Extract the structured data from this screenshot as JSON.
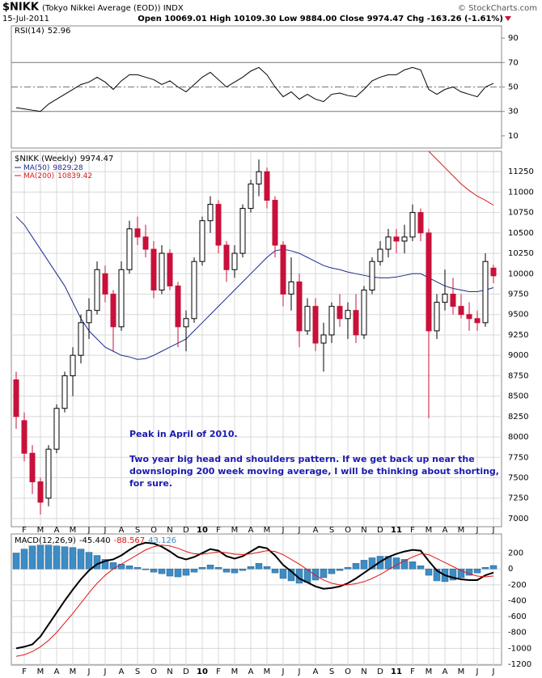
{
  "header": {
    "symbol": "$NIKK",
    "description": "(Tokyo Nikkei Average (EOD)) INDX",
    "date": "15-Jul-2011",
    "quote": "Open 10069.01 High 10109.30 Low 9884.00 Close 9974.47 Chg -163.26 (-1.61%)",
    "source": "© StockCharts.com"
  },
  "chart_data": [
    {
      "type": "line",
      "ylim": [
        0,
        100
      ],
      "yticks": [
        10,
        30,
        50,
        70,
        90
      ],
      "reference_lines": [
        {
          "value": 30,
          "style": "solid"
        },
        {
          "value": 50,
          "style": "dashdot"
        },
        {
          "value": 70,
          "style": "solid"
        }
      ],
      "series": [
        {
          "name": "RSI(14)",
          "color": "#000000",
          "values": [
            33,
            32,
            31,
            30,
            36,
            40,
            44,
            48,
            52,
            54,
            58,
            54,
            48,
            55,
            60,
            60,
            58,
            56,
            52,
            55,
            50,
            46,
            52,
            58,
            62,
            56,
            50,
            54,
            58,
            63,
            66,
            60,
            50,
            42,
            46,
            40,
            44,
            40,
            38,
            44,
            45,
            43,
            42,
            48,
            55,
            58,
            60,
            60,
            64,
            66,
            64,
            48,
            44,
            48,
            50,
            46,
            44,
            42,
            50,
            52.96
          ]
        }
      ]
    },
    {
      "type": "candlestick",
      "ylim": [
        6900,
        11500
      ],
      "yticks": [
        7000,
        7250,
        7500,
        7750,
        8000,
        8250,
        8500,
        8750,
        9000,
        9250,
        9500,
        9750,
        10000,
        10250,
        10500,
        10750,
        11000,
        11250
      ],
      "grid": true,
      "categories": [
        null,
        "F",
        null,
        "M",
        null,
        "A",
        null,
        "M",
        null,
        "J",
        null,
        "J",
        null,
        "A",
        null,
        "S",
        null,
        "O",
        null,
        "N",
        null,
        "D",
        null,
        "10",
        null,
        "F",
        null,
        "M",
        null,
        "A",
        null,
        "M",
        null,
        "J",
        null,
        "J",
        null,
        "A",
        null,
        "S",
        null,
        "O",
        null,
        "N",
        null,
        "D",
        null,
        "11",
        null,
        "F",
        null,
        "M",
        null,
        "A",
        null,
        "M",
        null,
        "J",
        null,
        "J"
      ],
      "annotations": [
        "Peak in April of 2010.",
        "Two year big head and shoulders pattern. If we get back up near the",
        "downsloping 200 week moving average, I will be thinking about shorting,",
        "for sure."
      ],
      "annotation_color": "#1a1ab0",
      "series": [
        {
          "name": "$NIKK (Weekly)",
          "up_color": "#000000",
          "down_color": "#c8103a",
          "open": [
            8700,
            8200,
            7800,
            7450,
            7250,
            7850,
            8350,
            8750,
            9000,
            9400,
            9550,
            10000,
            9750,
            9350,
            10050,
            10550,
            10450,
            10300,
            9800,
            10250,
            9850,
            9350,
            9450,
            10150,
            10650,
            10850,
            10350,
            10050,
            10250,
            10800,
            11100,
            11250,
            10900,
            10350,
            9750,
            9900,
            9300,
            9600,
            9150,
            9250,
            9600,
            9450,
            9550,
            9250,
            9800,
            10150,
            10300,
            10450,
            10400,
            10450,
            10750,
            10500,
            9300,
            9650,
            9750,
            9600,
            9500,
            9450,
            9400,
            10069.01
          ],
          "high": [
            8800,
            8300,
            7900,
            7500,
            7900,
            8400,
            8800,
            9100,
            9500,
            9700,
            10150,
            10100,
            9800,
            10150,
            10650,
            10700,
            10600,
            10400,
            10350,
            10300,
            9900,
            9550,
            10200,
            10700,
            10950,
            10900,
            10400,
            10350,
            10850,
            11150,
            11400,
            11300,
            10950,
            10400,
            10200,
            10000,
            9700,
            9700,
            9400,
            9650,
            9750,
            9650,
            9750,
            9850,
            10200,
            10400,
            10550,
            10550,
            10600,
            10850,
            10800,
            10550,
            9750,
            10050,
            9950,
            9750,
            9650,
            9550,
            10250,
            10109.3
          ],
          "low": [
            8100,
            7700,
            7300,
            7050,
            7150,
            7800,
            8300,
            8500,
            8900,
            9200,
            9500,
            9650,
            9050,
            9300,
            10000,
            10350,
            10200,
            9700,
            9750,
            9800,
            9100,
            9050,
            9400,
            10100,
            10500,
            10250,
            9900,
            9950,
            10200,
            10750,
            10950,
            10800,
            10200,
            9600,
            9550,
            9100,
            9250,
            9050,
            8800,
            9150,
            9350,
            9200,
            9150,
            9200,
            9750,
            10100,
            10200,
            10250,
            10250,
            10400,
            10400,
            8230,
            9200,
            9550,
            9500,
            9450,
            9300,
            9300,
            9350,
            9884.0
          ],
          "close": [
            8250,
            7800,
            7450,
            7200,
            7850,
            8350,
            8750,
            9000,
            9400,
            9550,
            10050,
            9750,
            9350,
            10050,
            10550,
            10450,
            10300,
            9800,
            10250,
            9850,
            9350,
            9450,
            10150,
            10650,
            10850,
            10350,
            10050,
            10250,
            10800,
            11100,
            11250,
            10900,
            10350,
            9750,
            9900,
            9300,
            9600,
            9150,
            9250,
            9600,
            9450,
            9550,
            9250,
            9800,
            10150,
            10300,
            10450,
            10400,
            10450,
            10750,
            10500,
            9300,
            9650,
            9750,
            9600,
            9500,
            9450,
            9400,
            10150,
            9974.47
          ]
        }
      ],
      "lines": [
        {
          "name": "MA(50)",
          "color": "#1c2a8c",
          "values": [
            10700,
            10600,
            10450,
            10300,
            10150,
            10000,
            9850,
            9650,
            9450,
            9300,
            9200,
            9100,
            9050,
            9000,
            8980,
            8950,
            8960,
            9000,
            9050,
            9100,
            9150,
            9200,
            9300,
            9400,
            9500,
            9600,
            9700,
            9800,
            9900,
            10000,
            10100,
            10200,
            10280,
            10300,
            10280,
            10250,
            10200,
            10150,
            10100,
            10070,
            10050,
            10020,
            10000,
            9980,
            9960,
            9950,
            9950,
            9960,
            9980,
            10000,
            10000,
            9950,
            9900,
            9850,
            9820,
            9800,
            9780,
            9780,
            9800,
            9829.28
          ]
        },
        {
          "name": "MA(200)",
          "color": "#e01818",
          "values": [
            null,
            null,
            null,
            null,
            null,
            null,
            null,
            null,
            null,
            null,
            null,
            null,
            null,
            null,
            null,
            null,
            null,
            null,
            null,
            null,
            null,
            null,
            null,
            null,
            null,
            null,
            null,
            null,
            null,
            null,
            null,
            null,
            null,
            null,
            null,
            null,
            null,
            null,
            null,
            null,
            null,
            null,
            null,
            null,
            null,
            null,
            null,
            null,
            null,
            null,
            null,
            11500,
            11400,
            11300,
            11200,
            11100,
            11020,
            10950,
            10900,
            10839.42
          ]
        }
      ]
    },
    {
      "type": "macd",
      "ylim": [
        -1210,
        440
      ],
      "yticks": [
        -1200,
        -1000,
        -800,
        -600,
        -400,
        -200,
        0,
        200
      ],
      "categories": [
        null,
        "F",
        null,
        "M",
        null,
        "A",
        null,
        "M",
        null,
        "J",
        null,
        "J",
        null,
        "A",
        null,
        "S",
        null,
        "O",
        null,
        "N",
        null,
        "D",
        null,
        "10",
        null,
        "F",
        null,
        "M",
        null,
        "A",
        null,
        "M",
        null,
        "J",
        null,
        "J",
        null,
        "A",
        null,
        "S",
        null,
        "O",
        null,
        "N",
        null,
        "D",
        null,
        "11",
        null,
        "F",
        null,
        "M",
        null,
        "A",
        null,
        "M",
        null,
        "J",
        null,
        "J"
      ],
      "series": [
        {
          "name": "MACD(12,26,9)",
          "kind": "line",
          "color": "#000000",
          "values": [
            -1000,
            -980,
            -950,
            -850,
            -700,
            -550,
            -400,
            -260,
            -130,
            -20,
            60,
            100,
            120,
            170,
            240,
            300,
            330,
            320,
            280,
            220,
            150,
            120,
            150,
            200,
            250,
            230,
            160,
            130,
            160,
            220,
            280,
            260,
            170,
            50,
            -30,
            -120,
            -170,
            -220,
            -250,
            -240,
            -220,
            -180,
            -120,
            -50,
            20,
            90,
            150,
            190,
            220,
            240,
            230,
            100,
            -20,
            -80,
            -110,
            -130,
            -140,
            -140,
            -80,
            -45.44
          ],
          "value_labels": [
            null,
            null,
            null,
            null,
            null,
            null,
            null,
            null,
            null,
            null,
            null,
            null,
            null,
            null,
            null,
            null,
            null,
            null,
            null,
            null,
            null,
            null,
            null,
            null,
            null,
            null,
            null,
            null,
            null,
            null,
            null,
            null,
            null,
            null,
            null,
            null,
            null,
            null,
            null,
            null,
            null,
            null,
            null,
            null,
            null,
            null,
            null,
            null,
            null,
            null,
            null,
            null,
            null,
            null,
            null,
            null,
            null,
            null,
            null,
            "-45.440"
          ]
        },
        {
          "kind": "line",
          "color": "#e01818",
          "values": [
            -1100,
            -1080,
            -1040,
            -980,
            -900,
            -800,
            -680,
            -560,
            -430,
            -300,
            -180,
            -80,
            0,
            60,
            120,
            180,
            240,
            280,
            300,
            290,
            260,
            220,
            190,
            185,
            200,
            215,
            205,
            185,
            180,
            190,
            210,
            230,
            220,
            180,
            120,
            60,
            -10,
            -80,
            -140,
            -180,
            -200,
            -200,
            -185,
            -160,
            -120,
            -70,
            -10,
            50,
            100,
            150,
            190,
            180,
            130,
            80,
            30,
            -20,
            -60,
            -90,
            -100,
            -88.567
          ],
          "value_labels": [
            null,
            null,
            null,
            null,
            null,
            null,
            null,
            null,
            null,
            null,
            null,
            null,
            null,
            null,
            null,
            null,
            null,
            null,
            null,
            null,
            null,
            null,
            null,
            null,
            null,
            null,
            null,
            null,
            null,
            null,
            null,
            null,
            null,
            null,
            null,
            null,
            null,
            null,
            null,
            null,
            null,
            null,
            null,
            null,
            null,
            null,
            null,
            null,
            null,
            null,
            null,
            null,
            null,
            null,
            null,
            null,
            null,
            null,
            null,
            "-88.567"
          ]
        },
        {
          "kind": "histogram",
          "color": "#3d8cc4",
          "values": [
            200,
            250,
            290,
            300,
            300,
            290,
            280,
            270,
            250,
            210,
            170,
            120,
            80,
            60,
            40,
            20,
            -10,
            -40,
            -60,
            -90,
            -100,
            -80,
            -40,
            20,
            50,
            20,
            -40,
            -50,
            -20,
            30,
            70,
            30,
            -50,
            -120,
            -150,
            -180,
            -170,
            -140,
            -110,
            -60,
            -20,
            20,
            70,
            110,
            140,
            160,
            160,
            140,
            120,
            90,
            40,
            -80,
            -150,
            -160,
            -140,
            -110,
            -80,
            -50,
            20,
            43.126
          ]
        }
      ]
    }
  ]
}
